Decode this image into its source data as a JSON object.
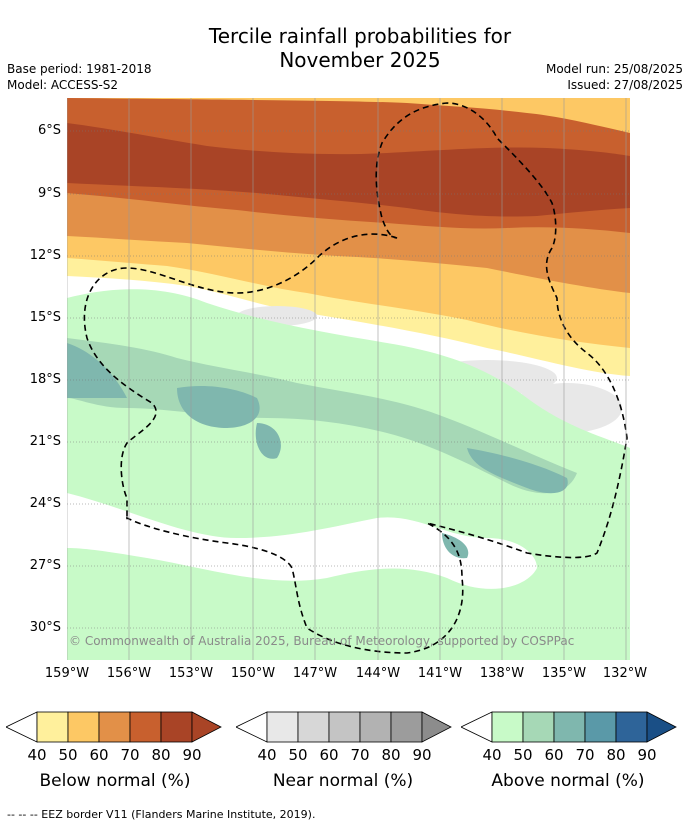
{
  "title_line1": "Tercile rainfall probabilities for",
  "title_line2": "November 2025",
  "base_period": "Base period: 1981-2018",
  "model": "Model: ACCESS-S2",
  "model_run": "Model run: 25/08/2025",
  "issued": "Issued: 27/08/2025",
  "lat_labels": [
    "6°S",
    "9°S",
    "12°S",
    "15°S",
    "18°S",
    "21°S",
    "24°S",
    "27°S",
    "30°S"
  ],
  "lon_labels": [
    "159°W",
    "156°W",
    "153°W",
    "150°W",
    "147°W",
    "144°W",
    "141°W",
    "138°W",
    "135°W",
    "132°W"
  ],
  "copyright": "© Commonwealth of Australia 2025, Bureau of Meteorology, supported by COSPPac",
  "colorbars": [
    {
      "label": "Below normal (%)",
      "colors": [
        "#fff09c",
        "#fdc864",
        "#e29048",
        "#c8602e",
        "#a94426",
        "#a94426"
      ]
    },
    {
      "label": "Near normal (%)",
      "colors": [
        "#e8e8e8",
        "#d7d7d7",
        "#c4c4c4",
        "#b2b2b2",
        "#9c9c9c",
        "#8c8c8c"
      ]
    },
    {
      "label": "Above normal (%)",
      "colors": [
        "#c8fac8",
        "#a6d8b6",
        "#7fb7ae",
        "#5a99a8",
        "#2e6499",
        "#1a4f86"
      ]
    }
  ],
  "tick_values": [
    "40",
    "50",
    "60",
    "70",
    "80",
    "90"
  ],
  "footer": "-- -- -- EEZ border V11 (Flanders Marine Institute, 2019)."
}
